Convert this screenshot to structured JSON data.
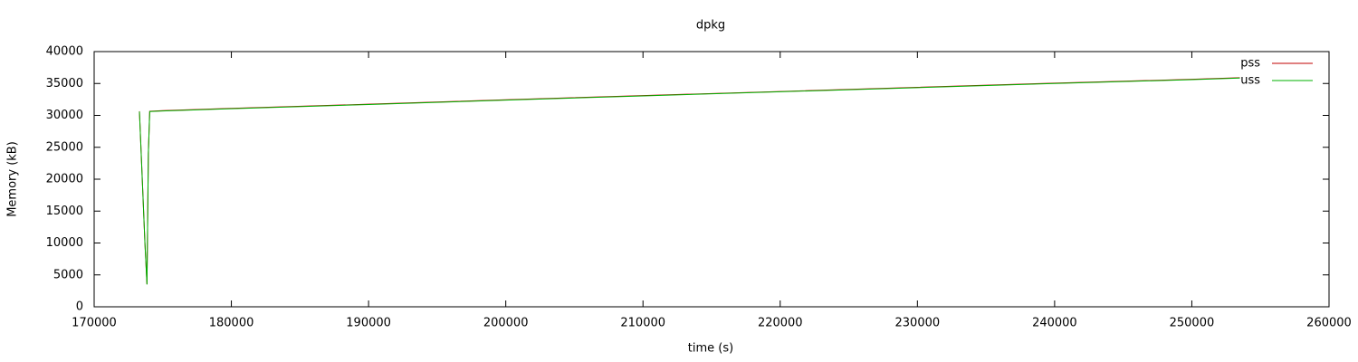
{
  "chart_data": {
    "type": "line",
    "title": "dpkg",
    "xlabel": "time (s)",
    "ylabel": "Memory (kB)",
    "x": [
      173300,
      173700,
      173850,
      173950,
      174050,
      175000,
      180000,
      190000,
      200000,
      210000,
      220000,
      230000,
      240000,
      250000,
      253500
    ],
    "series": [
      {
        "name": "pss",
        "color": "#c00000",
        "values": [
          30650,
          10050,
          3550,
          24050,
          30650,
          30750,
          31100,
          31750,
          32450,
          33100,
          33750,
          34400,
          35050,
          35650,
          35900
        ]
      },
      {
        "name": "uss",
        "color": "#00b000",
        "values": [
          30600,
          10000,
          3500,
          24000,
          30600,
          30700,
          31050,
          31700,
          32400,
          33050,
          33700,
          34350,
          35000,
          35600,
          35850
        ]
      }
    ],
    "xlim": [
      170000,
      260000
    ],
    "xticks": [
      170000,
      180000,
      190000,
      200000,
      210000,
      220000,
      230000,
      240000,
      250000,
      260000
    ],
    "ylim": [
      0,
      40000
    ],
    "yticks": [
      0,
      5000,
      10000,
      15000,
      20000,
      25000,
      30000,
      35000,
      40000
    ],
    "grid": false,
    "legend": "top-right"
  }
}
